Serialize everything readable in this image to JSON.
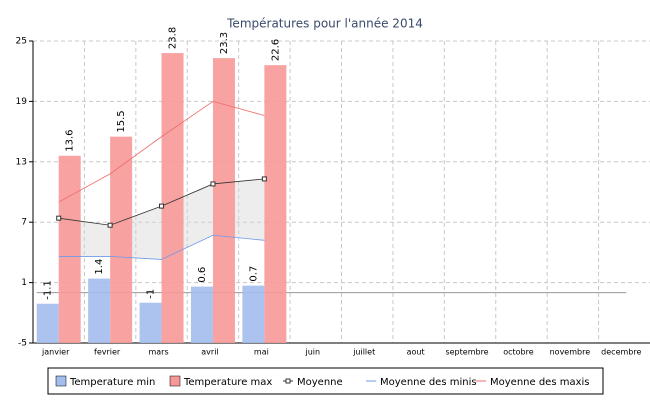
{
  "chart_data": {
    "type": "bar",
    "title": "Températures pour l'année 2014",
    "categories": [
      "janvier",
      "fevrier",
      "mars",
      "avril",
      "mai",
      "juin",
      "juillet",
      "aout",
      "septembre",
      "octobre",
      "novembre",
      "decembre"
    ],
    "series": [
      {
        "name": "Temperature min",
        "kind": "bar",
        "color": "#a3bdee",
        "values": [
          -1.1,
          1.4,
          -1.0,
          0.6,
          0.7,
          null,
          null,
          null,
          null,
          null,
          null,
          null
        ]
      },
      {
        "name": "Temperature max",
        "kind": "bar",
        "color": "#f79898",
        "values": [
          13.6,
          15.5,
          23.8,
          23.3,
          22.6,
          null,
          null,
          null,
          null,
          null,
          null,
          null
        ]
      },
      {
        "name": "Moyenne",
        "kind": "line",
        "marker": true,
        "color": "#333333",
        "values": [
          7.4,
          6.7,
          8.6,
          10.8,
          11.3,
          null,
          null,
          null,
          null,
          null,
          null,
          null
        ]
      },
      {
        "name": "Moyenne des minis",
        "kind": "line",
        "color": "#6f9ae6",
        "values": [
          3.6,
          3.6,
          3.3,
          5.7,
          5.2,
          null,
          null,
          null,
          null,
          null,
          null,
          null
        ]
      },
      {
        "name": "Moyenne des maxis",
        "kind": "line",
        "color": "#f06b6b",
        "values": [
          9.0,
          11.8,
          15.5,
          19.0,
          17.6,
          null,
          null,
          null,
          null,
          null,
          null,
          null
        ]
      }
    ],
    "fill_between": [
      2,
      3
    ],
    "ylim": [
      -5,
      25
    ],
    "yticks": [
      -5,
      1,
      7,
      13,
      19,
      25
    ],
    "grid": true,
    "legend": "bottom"
  }
}
